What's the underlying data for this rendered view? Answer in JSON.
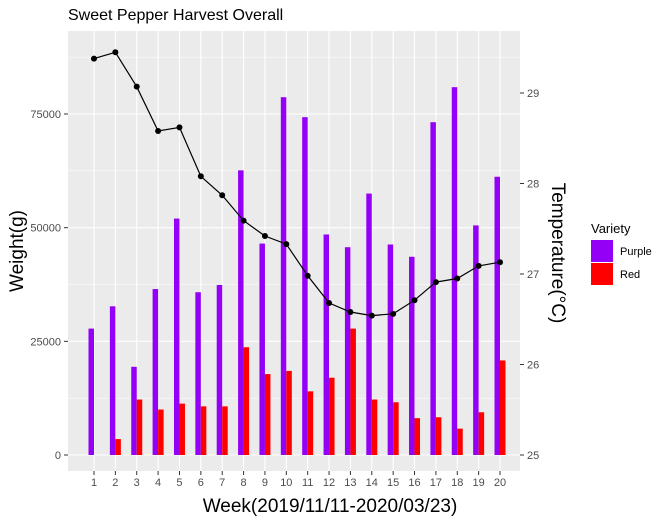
{
  "chart_data": {
    "type": "bar",
    "title": "Sweet Pepper Harvest Overall",
    "xlabel": "Week(2019/11/11-2020/03/23)",
    "ylabel": "Weight(g)",
    "y2label": "Temperature(°C)",
    "categories": [
      "1",
      "2",
      "3",
      "4",
      "5",
      "6",
      "7",
      "8",
      "9",
      "10",
      "11",
      "12",
      "13",
      "14",
      "15",
      "16",
      "17",
      "18",
      "19",
      "20"
    ],
    "ylim": [
      0,
      93000
    ],
    "yticks": [
      0,
      25000,
      50000,
      75000
    ],
    "ytick_labels": [
      "0",
      "25000",
      "50000",
      "75000"
    ],
    "y2lim": [
      24.98,
      29.6
    ],
    "y2ticks": [
      25,
      26,
      27,
      28,
      29
    ],
    "legend": {
      "title": "Variety",
      "position": "right"
    },
    "grid": true,
    "colors": {
      "Purple": "#9400F5",
      "Red": "#FF0000",
      "line": "#000000",
      "panel": "#EBEBEB",
      "gridline": "#FFFFFF"
    },
    "series": [
      {
        "name": "Purple",
        "values": [
          27800,
          32700,
          19400,
          36500,
          52000,
          35800,
          37400,
          62600,
          46500,
          78700,
          74300,
          48500,
          45700,
          57500,
          46300,
          43600,
          73200,
          80900,
          50500,
          61200
        ]
      },
      {
        "name": "Red",
        "values": [
          0,
          3500,
          12200,
          10000,
          11300,
          10700,
          10700,
          23700,
          17800,
          18500,
          14000,
          17000,
          27800,
          12200,
          11600,
          8100,
          8300,
          5800,
          9400,
          20800
        ]
      }
    ],
    "line_series": {
      "axis": "secondary",
      "values": [
        29.38,
        29.45,
        29.07,
        28.58,
        28.62,
        28.08,
        27.87,
        27.59,
        27.42,
        27.33,
        26.98,
        26.68,
        26.58,
        26.54,
        26.56,
        26.71,
        26.91,
        26.95,
        27.09,
        27.13
      ]
    }
  }
}
